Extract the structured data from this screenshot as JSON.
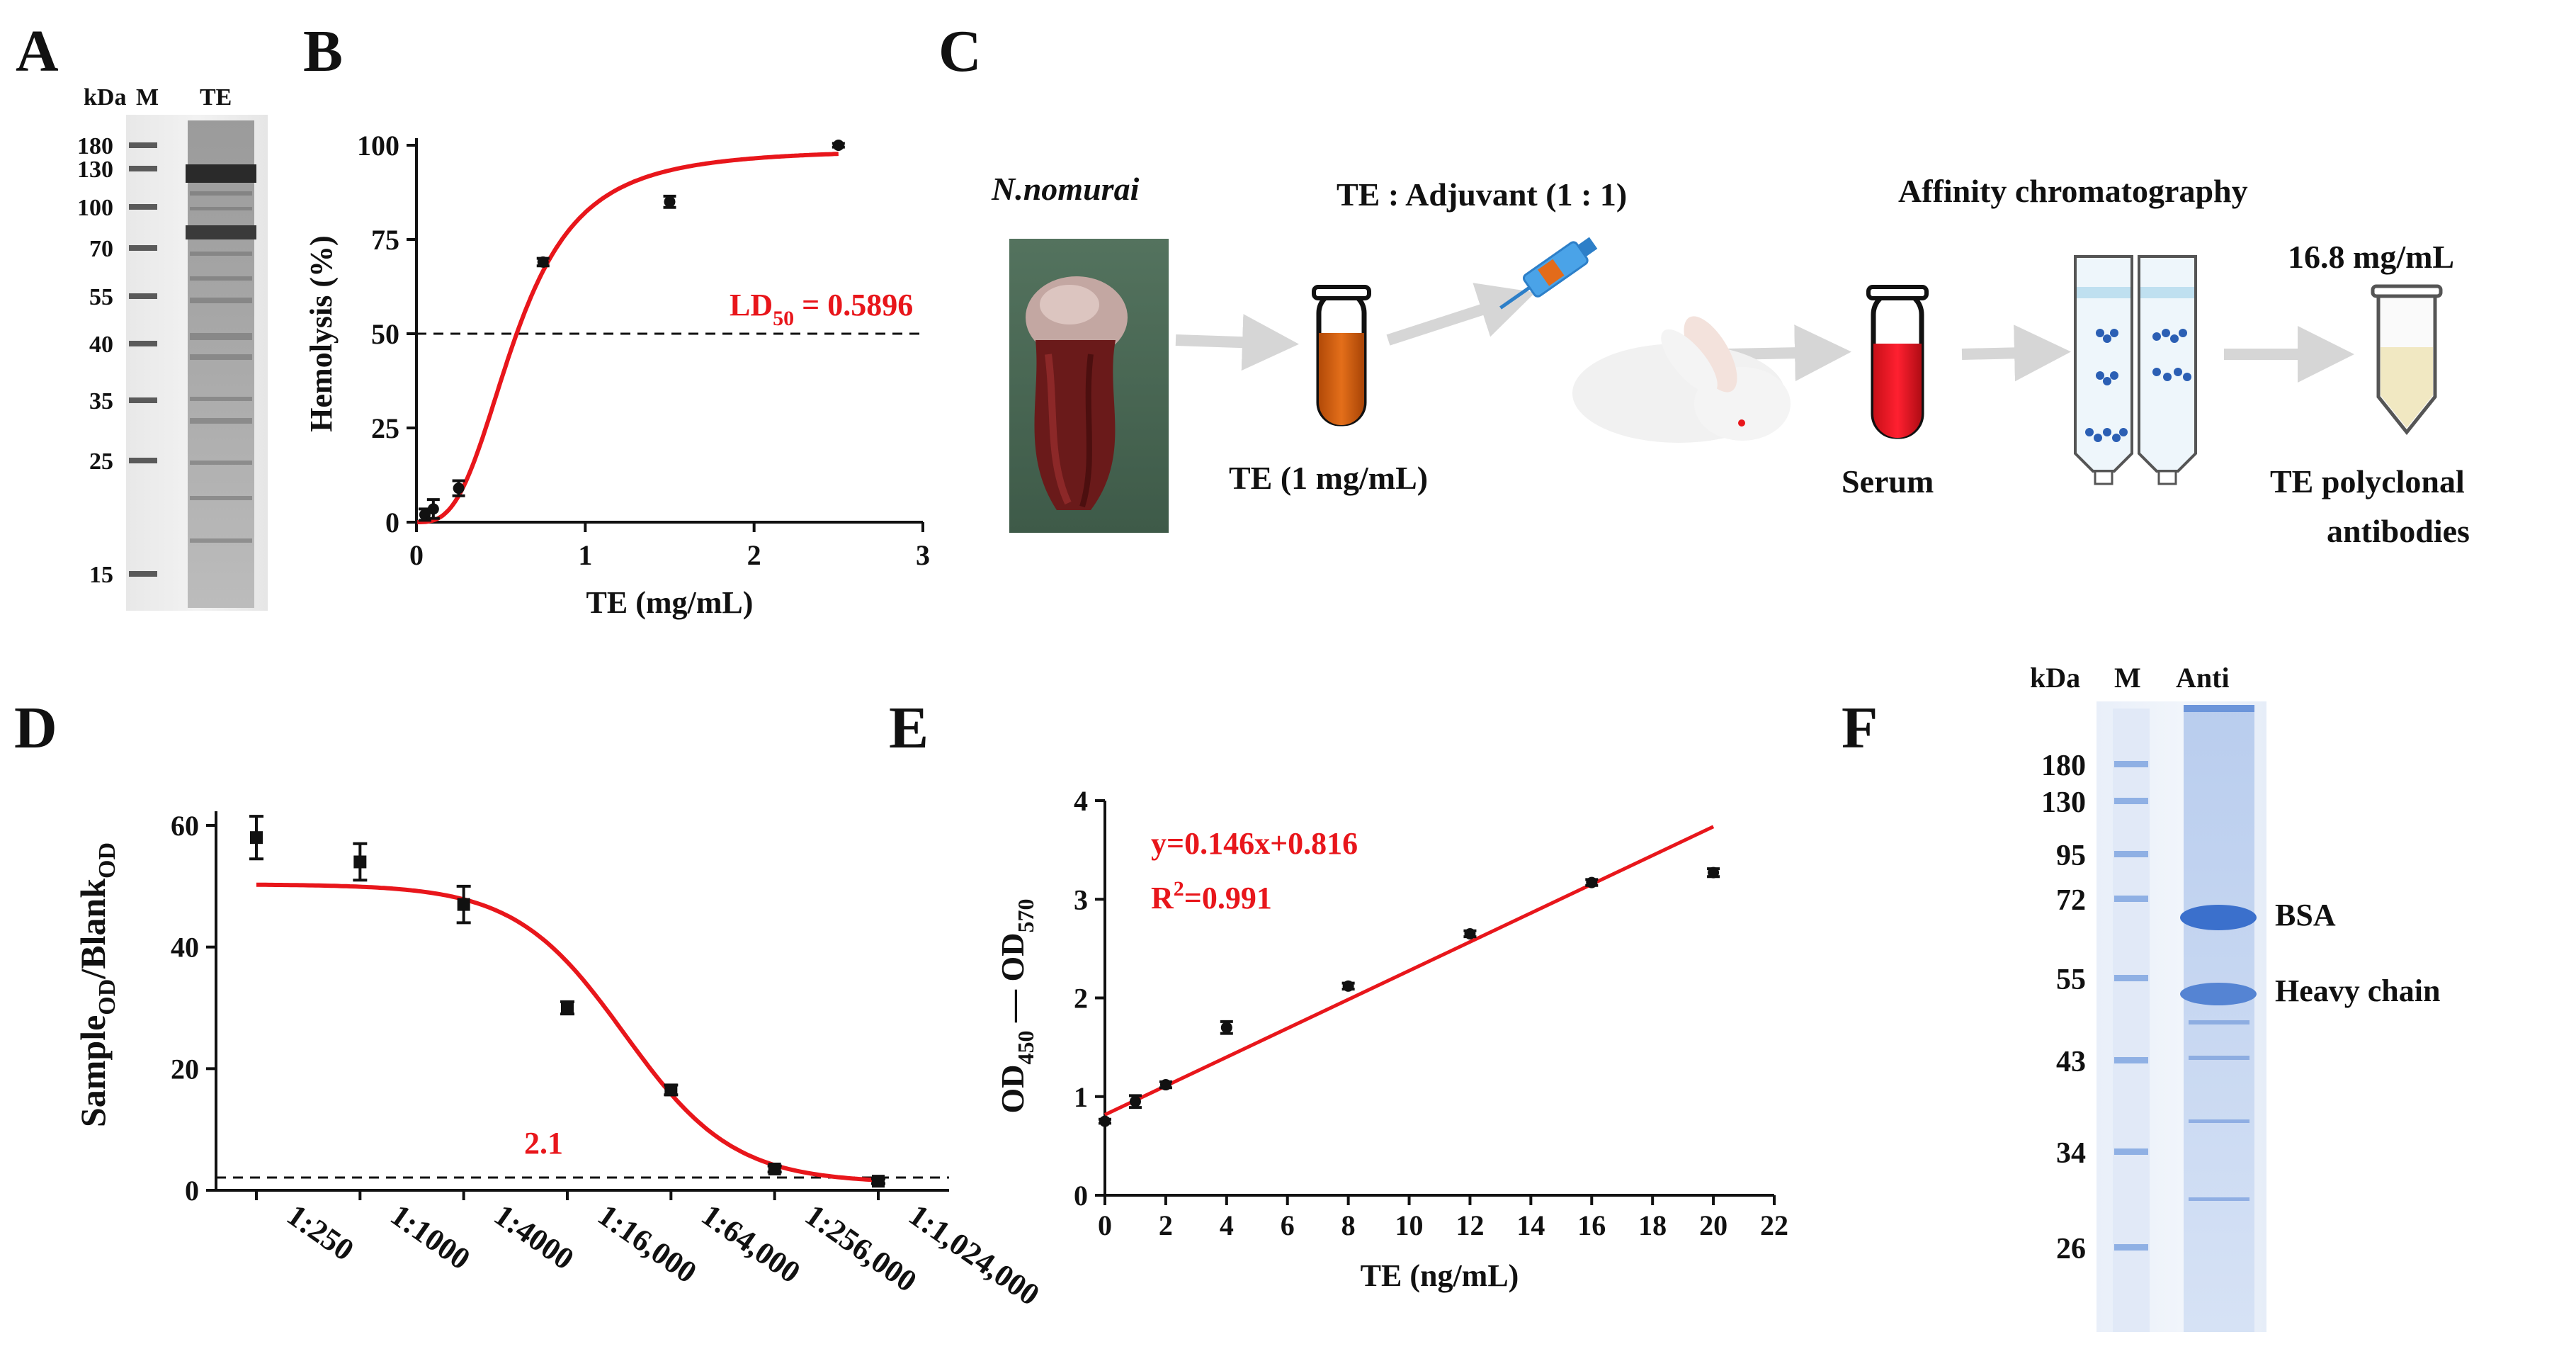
{
  "panels": {
    "A": {
      "label": "A",
      "kda": "kDa",
      "lane_marker": "M",
      "lane_sample": "TE",
      "markers": [
        "180",
        "130",
        "100",
        "70",
        "55",
        "40",
        "35",
        "25",
        "15"
      ]
    },
    "B": {
      "label": "B",
      "annotation": {
        "prefix": "LD",
        "sub": "50",
        "suffix": " = 0.5896"
      }
    },
    "C": {
      "label": "C",
      "species": "N.nomurai",
      "te_tube": "TE (1 mg/mL)",
      "mix": "TE : Adjuvant (1 : 1)",
      "serum": "Serum",
      "affinity": "Affinity chromatography",
      "concentration": "16.8 mg/mL",
      "product_line1": "TE polyclonal",
      "product_line2": "antibodies"
    },
    "D": {
      "label": "D",
      "ylabel": {
        "a": "Sample",
        "a_sub": "OD",
        "b": "/Blank",
        "b_sub": "OD"
      },
      "annotation": "2.1"
    },
    "E": {
      "label": "E",
      "ylabel": {
        "a": "OD",
        "a_sub": "450",
        "b": " — OD",
        "b_sub": "570"
      },
      "equation": "y=0.146x+0.816",
      "r2": {
        "prefix": "R",
        "sup": "2",
        "suffix": "=0.991"
      }
    },
    "F": {
      "label": "F",
      "kda": "kDa",
      "lane_marker": "M",
      "lane_sample": "Anti",
      "markers": [
        "180",
        "130",
        "95",
        "72",
        "55",
        "43",
        "34",
        "26"
      ],
      "band_bsa": "BSA",
      "band_heavy": "Heavy chain"
    }
  },
  "chart_data": [
    {
      "panel": "B",
      "type": "scatter",
      "title": "",
      "xlabel": "TE (mg/mL)",
      "ylabel": "Hemolysis (%)",
      "xlim": [
        0,
        3
      ],
      "ylim": [
        0,
        100
      ],
      "xticks": [
        "0",
        "1",
        "2",
        "3"
      ],
      "yticks": [
        "0",
        "25",
        "50",
        "75",
        "100"
      ],
      "points": [
        {
          "x": 0.05,
          "y": 2,
          "err": 1.5
        },
        {
          "x": 0.1,
          "y": 3.5,
          "err": 2.5
        },
        {
          "x": 0.25,
          "y": 9,
          "err": 2
        },
        {
          "x": 0.75,
          "y": 69,
          "err": 1
        },
        {
          "x": 1.5,
          "y": 85,
          "err": 1.5
        },
        {
          "x": 2.5,
          "y": 100,
          "err": 0.5
        }
      ],
      "fit": {
        "model": "sigmoid",
        "top": 99,
        "ld50": 0.5896,
        "hill": 3
      },
      "reference_line": {
        "y": 50,
        "style": "dashed"
      }
    },
    {
      "panel": "D",
      "type": "scatter",
      "title": "",
      "xlabel": "",
      "ylabel": "Sample_OD/Blank_OD",
      "ylim": [
        0,
        60
      ],
      "yticks": [
        "0",
        "20",
        "40",
        "60"
      ],
      "categories": [
        "1:250",
        "1:1000",
        "1:4000",
        "1:16,000",
        "1:64,000",
        "1:256,000",
        "1:1,024,000"
      ],
      "values": [
        58,
        54,
        47,
        30,
        16.5,
        3.5,
        1.5
      ],
      "errors": [
        3.5,
        3,
        3,
        1,
        0.8,
        0.5,
        0.4
      ],
      "fit": {
        "model": "sigmoid",
        "top": 50.3,
        "bottom": 1.2,
        "center_index": 3.55,
        "slope": 1.9
      },
      "reference_line": {
        "y": 2.1,
        "style": "dashed"
      }
    },
    {
      "panel": "E",
      "type": "scatter",
      "title": "",
      "xlabel": "TE (ng/mL)",
      "ylabel": "OD450 — OD570",
      "xlim": [
        0,
        22
      ],
      "ylim": [
        0,
        4
      ],
      "xticks": [
        "0",
        "2",
        "4",
        "6",
        "8",
        "10",
        "12",
        "14",
        "16",
        "18",
        "20",
        "22"
      ],
      "yticks": [
        "0",
        "1",
        "2",
        "3",
        "4"
      ],
      "points": [
        {
          "x": 0,
          "y": 0.75,
          "err": 0.02
        },
        {
          "x": 1,
          "y": 0.95,
          "err": 0.06
        },
        {
          "x": 2,
          "y": 1.12,
          "err": 0.03
        },
        {
          "x": 4,
          "y": 1.7,
          "err": 0.06
        },
        {
          "x": 8,
          "y": 2.12,
          "err": 0.03
        },
        {
          "x": 12,
          "y": 2.65,
          "err": 0.03
        },
        {
          "x": 16,
          "y": 3.17,
          "err": 0.03
        },
        {
          "x": 20,
          "y": 3.27,
          "err": 0.04
        }
      ],
      "fit": {
        "model": "linear",
        "slope": 0.146,
        "intercept": 0.816,
        "x_range": [
          0,
          20
        ]
      }
    }
  ]
}
